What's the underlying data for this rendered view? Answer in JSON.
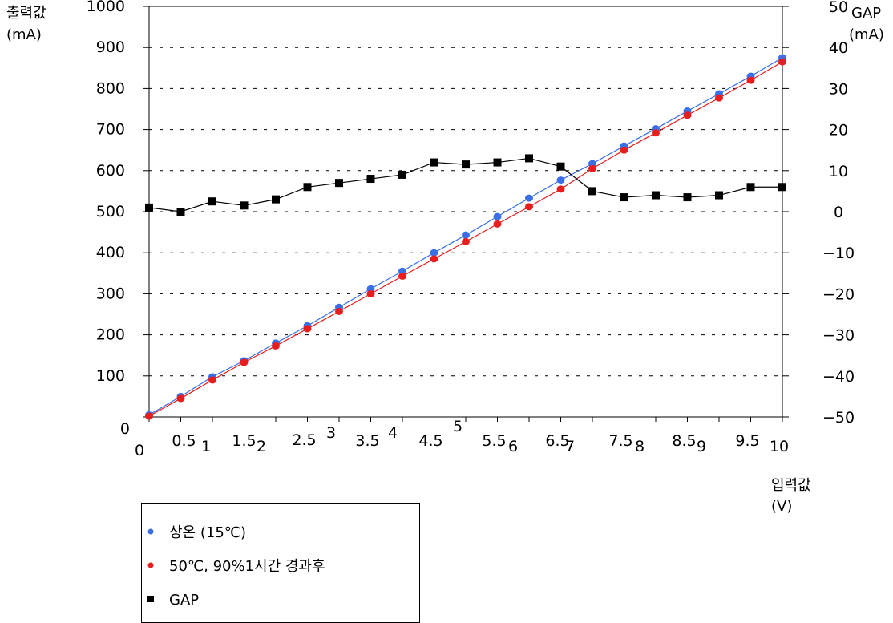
{
  "chart_data": {
    "type": "line",
    "left_axis_title": [
      "출력값",
      "(mA)"
    ],
    "right_axis_title": [
      "GAP",
      "(mA)"
    ],
    "x_axis_title": [
      "입력값",
      "(V)"
    ],
    "left_ylim": [
      0,
      1000
    ],
    "right_ylim": [
      -50,
      50
    ],
    "left_ticks": [
      0,
      100,
      200,
      300,
      400,
      500,
      600,
      700,
      800,
      900,
      1000
    ],
    "right_ticks": [
      "-50",
      "-40",
      "-30",
      "-20",
      "-10",
      "0",
      "10",
      "20",
      "30",
      "40",
      "50"
    ],
    "grid": "horizontal dashed",
    "x": [
      0,
      0.5,
      1,
      1.5,
      2,
      2.5,
      3,
      3.5,
      4,
      4.5,
      5,
      5.5,
      6,
      6.5,
      7,
      7.5,
      8,
      8.5,
      9,
      9.5,
      10
    ],
    "x_tick_labels": [
      "0",
      "0.5",
      "1",
      "1.5",
      "2",
      "2.5",
      "3",
      "3.5",
      "4",
      "4.5",
      "5",
      "5.5",
      "6",
      "6.5",
      "7",
      "7.5",
      "8",
      "8.5",
      "9",
      "9.5",
      "10"
    ],
    "series": [
      {
        "name": "상온 (15℃)",
        "axis": "left",
        "color": "#3a6fe8",
        "marker": "circle",
        "values": [
          5,
          50,
          98,
          137,
          180,
          222,
          267,
          312,
          355,
          400,
          443,
          488,
          533,
          577,
          617,
          660,
          702,
          745,
          787,
          830,
          875
        ]
      },
      {
        "name": "50℃, 90%1시간 경과후",
        "axis": "left",
        "color": "#e81e1e",
        "marker": "circle",
        "values": [
          2,
          45,
          90,
          133,
          173,
          215,
          257,
          300,
          343,
          385,
          427,
          470,
          512,
          555,
          605,
          650,
          692,
          735,
          777,
          820,
          865
        ]
      },
      {
        "name": "GAP",
        "axis": "right",
        "color": "#000000",
        "marker": "square",
        "values": [
          1,
          0,
          2.5,
          1.5,
          3,
          6,
          7,
          8,
          9,
          12,
          11.5,
          12,
          13,
          11,
          5,
          3.5,
          4,
          3.5,
          4,
          6,
          6
        ]
      }
    ]
  }
}
